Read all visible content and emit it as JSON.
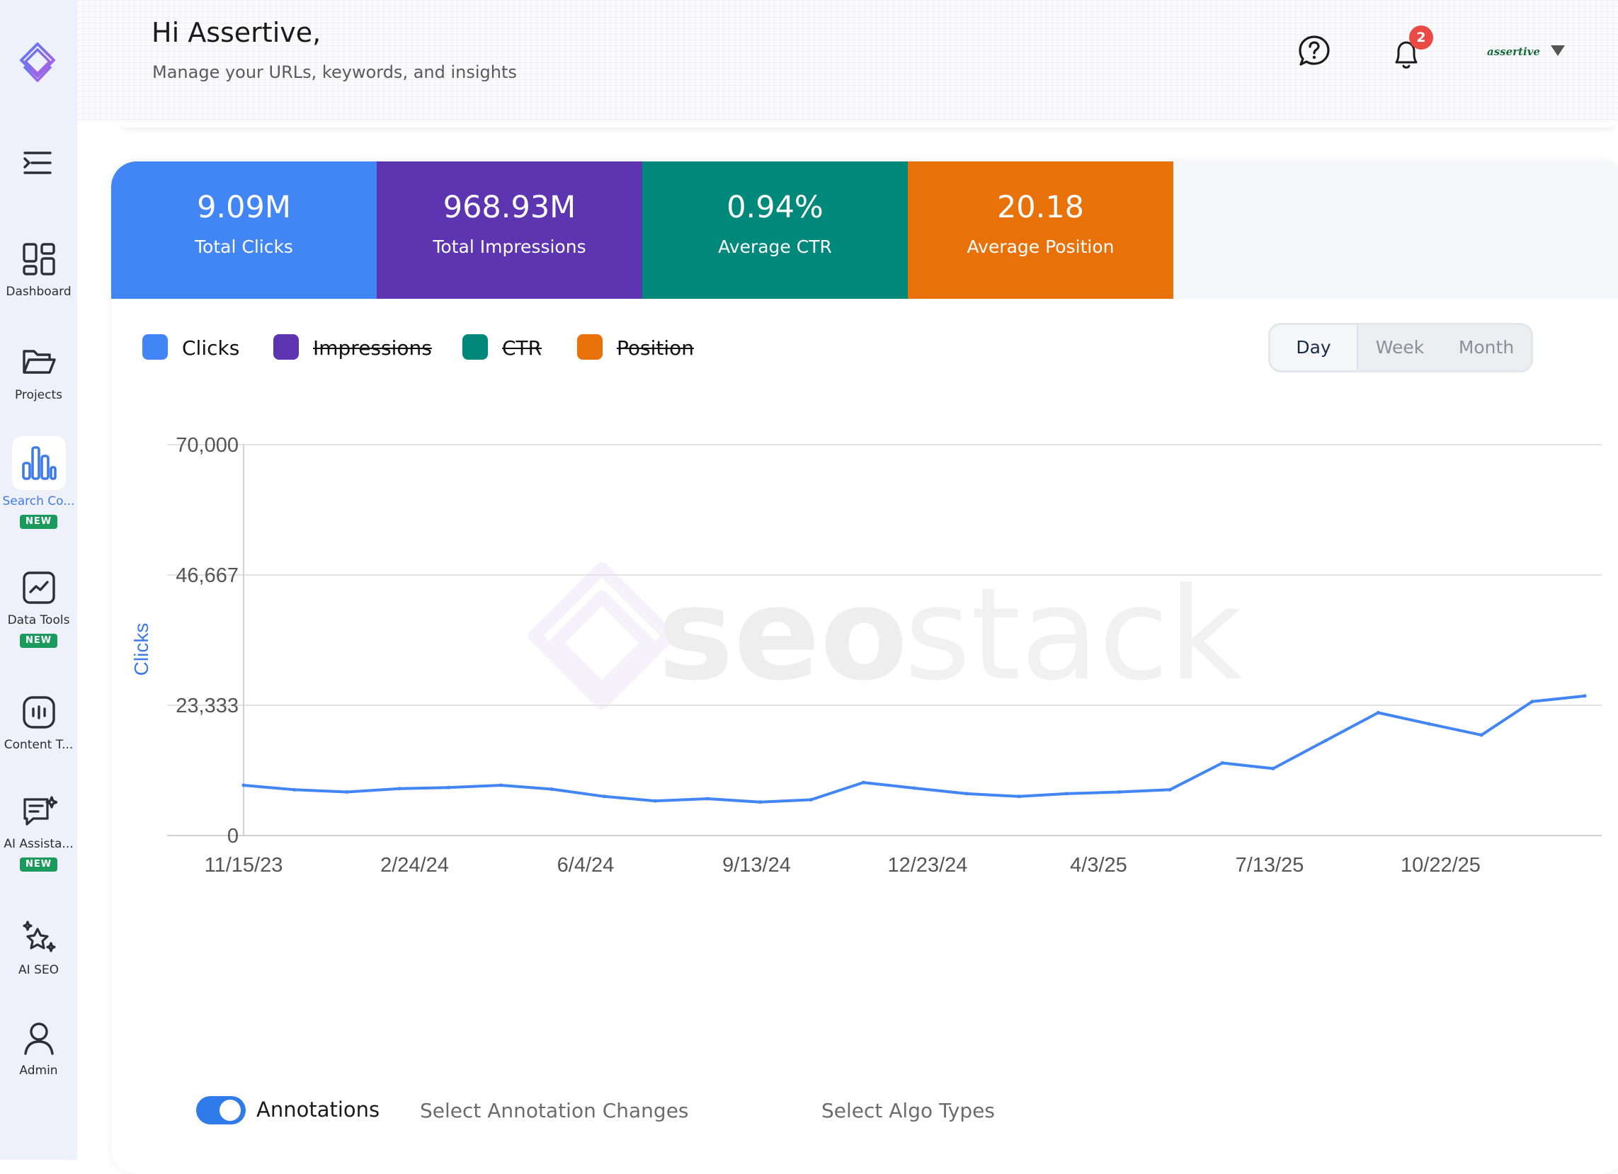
{
  "sidebar": {
    "items": [
      {
        "label": "Dashboard",
        "icon": "dashboard-icon"
      },
      {
        "label": "Projects",
        "icon": "folder-icon"
      },
      {
        "label": "Search Co...",
        "icon": "bar-chart-icon",
        "badge": "NEW",
        "active": true
      },
      {
        "label": "Data Tools",
        "icon": "trend-icon",
        "badge": "NEW"
      },
      {
        "label": "Content T...",
        "icon": "content-icon"
      },
      {
        "label": "AI Assista...",
        "icon": "chat-icon",
        "badge": "NEW"
      },
      {
        "label": "AI SEO",
        "icon": "sparkle-star-icon"
      },
      {
        "label": "Admin",
        "icon": "user-icon"
      }
    ]
  },
  "header": {
    "greeting": "Hi Assertive,",
    "subtitle": "Manage your URLs, keywords, and insights",
    "notification_count": "2",
    "account_name": "assertive"
  },
  "stats": [
    {
      "value": "9.09M",
      "label": "Total Clicks",
      "color": "#4285f4"
    },
    {
      "value": "968.93M",
      "label": "Total Impressions",
      "color": "#5e35b1"
    },
    {
      "value": "0.94%",
      "label": "Average CTR",
      "color": "#00897b"
    },
    {
      "value": "20.18",
      "label": "Average Position",
      "color": "#e8710a"
    }
  ],
  "legend": [
    {
      "label": "Clicks",
      "color": "#4285f4",
      "enabled": true
    },
    {
      "label": "Impressions",
      "color": "#5e35b1",
      "enabled": false
    },
    {
      "label": "CTR",
      "color": "#00897b",
      "enabled": false
    },
    {
      "label": "Position",
      "color": "#e8710a",
      "enabled": false
    }
  ],
  "range": {
    "options": [
      "Day",
      "Week",
      "Month"
    ],
    "selected": "Day"
  },
  "watermark": {
    "part1": "seo",
    "part2": "stack"
  },
  "chart_data": {
    "type": "line",
    "ylabel": "Clicks",
    "ylim": [
      0,
      70000
    ],
    "y_ticks": [
      "0",
      "23,333",
      "46,667",
      "70,000"
    ],
    "x_ticks": [
      "11/15/23",
      "2/24/24",
      "6/4/24",
      "9/13/24",
      "12/23/24",
      "4/3/25",
      "7/13/25",
      "10/22/25"
    ],
    "grid": true,
    "series": [
      {
        "name": "Clicks",
        "color": "#4285f4",
        "x": [
          "2023-11-15",
          "2023-12-15",
          "2024-01-15",
          "2024-02-15",
          "2024-03-15",
          "2024-04-15",
          "2024-05-15",
          "2024-06-15",
          "2024-07-15",
          "2024-08-15",
          "2024-09-15",
          "2024-10-15",
          "2024-11-15",
          "2024-12-15",
          "2025-01-15",
          "2025-02-15",
          "2025-03-15",
          "2025-04-15",
          "2025-05-15",
          "2025-06-15",
          "2025-07-15",
          "2025-08-15",
          "2025-09-15",
          "2025-10-15",
          "2025-11-15",
          "2025-12-15",
          "2026-01-15"
        ],
        "values": [
          9000,
          8200,
          7800,
          8400,
          8600,
          9000,
          8300,
          7000,
          6200,
          6600,
          6000,
          6400,
          9500,
          8500,
          7500,
          7000,
          7500,
          7800,
          8200,
          13000,
          12000,
          17000,
          22000,
          20000,
          18000,
          24000,
          25000
        ]
      }
    ]
  },
  "annotations": {
    "label": "Annotations",
    "enabled": true,
    "select_changes": "Select Annotation Changes",
    "select_algo": "Select Algo Types"
  }
}
